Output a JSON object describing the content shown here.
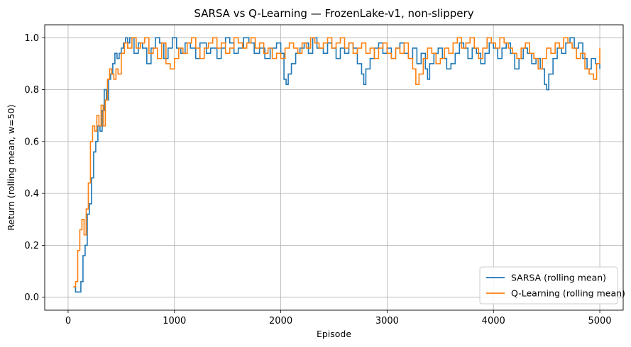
{
  "chart_data": {
    "type": "line",
    "title": "SARSA vs Q-Learning — FrozenLake-v1, non-slippery",
    "xlabel": "Episode",
    "ylabel": "Return (rolling mean, w=50)",
    "xlim": [
      -220,
      5220
    ],
    "ylim": [
      -0.05,
      1.05
    ],
    "xticks": [
      0,
      1000,
      2000,
      3000,
      4000,
      5000
    ],
    "yticks": [
      0.0,
      0.2,
      0.4,
      0.6,
      0.8,
      1.0
    ],
    "xtick_labels": [
      "0",
      "1000",
      "2000",
      "3000",
      "4000",
      "5000"
    ],
    "ytick_labels": [
      "0.0",
      "0.2",
      "0.4",
      "0.6",
      "0.8",
      "1.0"
    ],
    "grid": true,
    "legend_position": "lower-right",
    "series": [
      {
        "name": "SARSA (rolling mean)",
        "color": "#1f77b4",
        "points": [
          [
            50,
            0.04
          ],
          [
            70,
            0.02
          ],
          [
            100,
            0.02
          ],
          [
            120,
            0.06
          ],
          [
            140,
            0.16
          ],
          [
            160,
            0.2
          ],
          [
            180,
            0.32
          ],
          [
            200,
            0.36
          ],
          [
            220,
            0.46
          ],
          [
            240,
            0.56
          ],
          [
            260,
            0.6
          ],
          [
            280,
            0.66
          ],
          [
            300,
            0.64
          ],
          [
            320,
            0.72
          ],
          [
            340,
            0.8
          ],
          [
            360,
            0.76
          ],
          [
            380,
            0.84
          ],
          [
            400,
            0.86
          ],
          [
            420,
            0.9
          ],
          [
            440,
            0.94
          ],
          [
            460,
            0.92
          ],
          [
            480,
            0.94
          ],
          [
            500,
            0.96
          ],
          [
            520,
            0.98
          ],
          [
            540,
            1.0
          ],
          [
            560,
            0.98
          ],
          [
            580,
            1.0
          ],
          [
            620,
            0.94
          ],
          [
            660,
            0.98
          ],
          [
            700,
            0.96
          ],
          [
            740,
            0.9
          ],
          [
            780,
            0.96
          ],
          [
            820,
            1.0
          ],
          [
            860,
            0.98
          ],
          [
            900,
            0.92
          ],
          [
            940,
            0.96
          ],
          [
            980,
            1.0
          ],
          [
            1020,
            0.96
          ],
          [
            1060,
            0.94
          ],
          [
            1100,
            0.98
          ],
          [
            1150,
            0.96
          ],
          [
            1200,
            0.92
          ],
          [
            1240,
            0.98
          ],
          [
            1300,
            0.94
          ],
          [
            1340,
            0.96
          ],
          [
            1400,
            0.92
          ],
          [
            1440,
            0.96
          ],
          [
            1480,
            1.0
          ],
          [
            1520,
            0.98
          ],
          [
            1560,
            0.94
          ],
          [
            1600,
            0.96
          ],
          [
            1650,
            1.0
          ],
          [
            1700,
            0.98
          ],
          [
            1750,
            0.94
          ],
          [
            1800,
            0.96
          ],
          [
            1850,
            0.92
          ],
          [
            1900,
            0.96
          ],
          [
            1960,
            0.98
          ],
          [
            2000,
            0.94
          ],
          [
            2030,
            0.84
          ],
          [
            2050,
            0.82
          ],
          [
            2070,
            0.86
          ],
          [
            2100,
            0.9
          ],
          [
            2140,
            0.94
          ],
          [
            2180,
            0.96
          ],
          [
            2220,
            0.98
          ],
          [
            2260,
            0.94
          ],
          [
            2300,
            1.0
          ],
          [
            2340,
            0.96
          ],
          [
            2400,
            0.94
          ],
          [
            2440,
            0.98
          ],
          [
            2480,
            0.96
          ],
          [
            2520,
            0.92
          ],
          [
            2560,
            0.96
          ],
          [
            2600,
            0.94
          ],
          [
            2640,
            0.98
          ],
          [
            2680,
            0.96
          ],
          [
            2720,
            0.9
          ],
          [
            2760,
            0.86
          ],
          [
            2780,
            0.82
          ],
          [
            2800,
            0.88
          ],
          [
            2840,
            0.92
          ],
          [
            2880,
            0.96
          ],
          [
            2920,
            0.98
          ],
          [
            2960,
            0.94
          ],
          [
            3000,
            0.96
          ],
          [
            3040,
            0.92
          ],
          [
            3080,
            0.96
          ],
          [
            3120,
            0.98
          ],
          [
            3160,
            0.94
          ],
          [
            3200,
            0.92
          ],
          [
            3240,
            0.96
          ],
          [
            3280,
            0.9
          ],
          [
            3320,
            0.94
          ],
          [
            3360,
            0.88
          ],
          [
            3380,
            0.84
          ],
          [
            3400,
            0.9
          ],
          [
            3440,
            0.94
          ],
          [
            3480,
            0.96
          ],
          [
            3520,
            0.92
          ],
          [
            3560,
            0.88
          ],
          [
            3600,
            0.9
          ],
          [
            3640,
            0.94
          ],
          [
            3680,
            0.98
          ],
          [
            3720,
            0.96
          ],
          [
            3760,
            0.92
          ],
          [
            3800,
            0.96
          ],
          [
            3840,
            0.94
          ],
          [
            3880,
            0.9
          ],
          [
            3920,
            0.94
          ],
          [
            3960,
            0.98
          ],
          [
            4000,
            0.96
          ],
          [
            4040,
            0.92
          ],
          [
            4080,
            0.96
          ],
          [
            4120,
            0.98
          ],
          [
            4160,
            0.94
          ],
          [
            4200,
            0.88
          ],
          [
            4240,
            0.92
          ],
          [
            4280,
            0.96
          ],
          [
            4320,
            0.94
          ],
          [
            4360,
            0.9
          ],
          [
            4400,
            0.92
          ],
          [
            4440,
            0.88
          ],
          [
            4480,
            0.82
          ],
          [
            4500,
            0.8
          ],
          [
            4520,
            0.86
          ],
          [
            4560,
            0.92
          ],
          [
            4600,
            0.96
          ],
          [
            4640,
            0.94
          ],
          [
            4680,
            0.98
          ],
          [
            4720,
            1.0
          ],
          [
            4760,
            0.96
          ],
          [
            4800,
            0.98
          ],
          [
            4840,
            0.92
          ],
          [
            4880,
            0.88
          ],
          [
            4920,
            0.92
          ],
          [
            4960,
            0.9
          ],
          [
            5000,
            0.88
          ]
        ]
      },
      {
        "name": "Q-Learning (rolling mean)",
        "color": "#ff7f0e",
        "points": [
          [
            50,
            0.04
          ],
          [
            70,
            0.06
          ],
          [
            90,
            0.18
          ],
          [
            110,
            0.26
          ],
          [
            130,
            0.3
          ],
          [
            150,
            0.24
          ],
          [
            170,
            0.34
          ],
          [
            190,
            0.44
          ],
          [
            210,
            0.6
          ],
          [
            230,
            0.66
          ],
          [
            250,
            0.64
          ],
          [
            270,
            0.7
          ],
          [
            290,
            0.66
          ],
          [
            310,
            0.74
          ],
          [
            330,
            0.66
          ],
          [
            350,
            0.76
          ],
          [
            370,
            0.84
          ],
          [
            390,
            0.88
          ],
          [
            410,
            0.86
          ],
          [
            430,
            0.84
          ],
          [
            450,
            0.88
          ],
          [
            470,
            0.86
          ],
          [
            500,
            0.94
          ],
          [
            530,
            0.98
          ],
          [
            560,
            0.96
          ],
          [
            600,
            1.0
          ],
          [
            640,
            0.96
          ],
          [
            680,
            0.98
          ],
          [
            720,
            1.0
          ],
          [
            760,
            0.94
          ],
          [
            800,
            0.96
          ],
          [
            840,
            0.92
          ],
          [
            880,
            0.98
          ],
          [
            920,
            0.9
          ],
          [
            960,
            0.88
          ],
          [
            1000,
            0.92
          ],
          [
            1040,
            0.96
          ],
          [
            1080,
            0.94
          ],
          [
            1120,
            0.98
          ],
          [
            1160,
            1.0
          ],
          [
            1200,
            0.96
          ],
          [
            1240,
            0.92
          ],
          [
            1280,
            0.96
          ],
          [
            1320,
            0.98
          ],
          [
            1360,
            1.0
          ],
          [
            1400,
            0.96
          ],
          [
            1440,
            0.98
          ],
          [
            1480,
            0.94
          ],
          [
            1520,
            0.96
          ],
          [
            1560,
            1.0
          ],
          [
            1600,
            0.98
          ],
          [
            1640,
            0.96
          ],
          [
            1680,
            0.98
          ],
          [
            1720,
            1.0
          ],
          [
            1760,
            0.96
          ],
          [
            1800,
            0.98
          ],
          [
            1840,
            0.94
          ],
          [
            1880,
            0.96
          ],
          [
            1920,
            0.92
          ],
          [
            1960,
            0.94
          ],
          [
            2000,
            0.92
          ],
          [
            2040,
            0.96
          ],
          [
            2080,
            0.98
          ],
          [
            2120,
            0.96
          ],
          [
            2160,
            0.94
          ],
          [
            2200,
            0.98
          ],
          [
            2240,
            0.96
          ],
          [
            2280,
            1.0
          ],
          [
            2320,
            0.98
          ],
          [
            2360,
            0.96
          ],
          [
            2400,
            0.98
          ],
          [
            2440,
            1.0
          ],
          [
            2480,
            0.96
          ],
          [
            2520,
            0.98
          ],
          [
            2560,
            1.0
          ],
          [
            2600,
            0.96
          ],
          [
            2640,
            0.98
          ],
          [
            2680,
            0.94
          ],
          [
            2720,
            0.96
          ],
          [
            2760,
            0.98
          ],
          [
            2800,
            0.94
          ],
          [
            2840,
            0.96
          ],
          [
            2880,
            0.92
          ],
          [
            2920,
            0.96
          ],
          [
            2960,
            0.98
          ],
          [
            3000,
            0.94
          ],
          [
            3040,
            0.92
          ],
          [
            3080,
            0.96
          ],
          [
            3120,
            0.94
          ],
          [
            3160,
            0.98
          ],
          [
            3200,
            0.92
          ],
          [
            3240,
            0.88
          ],
          [
            3270,
            0.82
          ],
          [
            3300,
            0.86
          ],
          [
            3340,
            0.92
          ],
          [
            3380,
            0.96
          ],
          [
            3420,
            0.94
          ],
          [
            3460,
            0.9
          ],
          [
            3500,
            0.92
          ],
          [
            3540,
            0.96
          ],
          [
            3580,
            0.94
          ],
          [
            3620,
            0.98
          ],
          [
            3660,
            1.0
          ],
          [
            3700,
            0.96
          ],
          [
            3740,
            0.98
          ],
          [
            3780,
            1.0
          ],
          [
            3820,
            0.96
          ],
          [
            3860,
            0.92
          ],
          [
            3900,
            0.96
          ],
          [
            3940,
            1.0
          ],
          [
            3980,
            0.98
          ],
          [
            4020,
            0.96
          ],
          [
            4060,
            1.0
          ],
          [
            4100,
            0.98
          ],
          [
            4140,
            0.96
          ],
          [
            4180,
            0.94
          ],
          [
            4220,
            0.92
          ],
          [
            4260,
            0.96
          ],
          [
            4300,
            0.98
          ],
          [
            4340,
            0.94
          ],
          [
            4380,
            0.92
          ],
          [
            4420,
            0.88
          ],
          [
            4460,
            0.92
          ],
          [
            4500,
            0.96
          ],
          [
            4540,
            0.94
          ],
          [
            4580,
            0.98
          ],
          [
            4620,
            0.96
          ],
          [
            4660,
            1.0
          ],
          [
            4700,
            0.98
          ],
          [
            4740,
            0.96
          ],
          [
            4780,
            0.92
          ],
          [
            4820,
            0.94
          ],
          [
            4860,
            0.88
          ],
          [
            4900,
            0.86
          ],
          [
            4940,
            0.84
          ],
          [
            4970,
            0.9
          ],
          [
            5000,
            0.96
          ]
        ]
      }
    ]
  }
}
